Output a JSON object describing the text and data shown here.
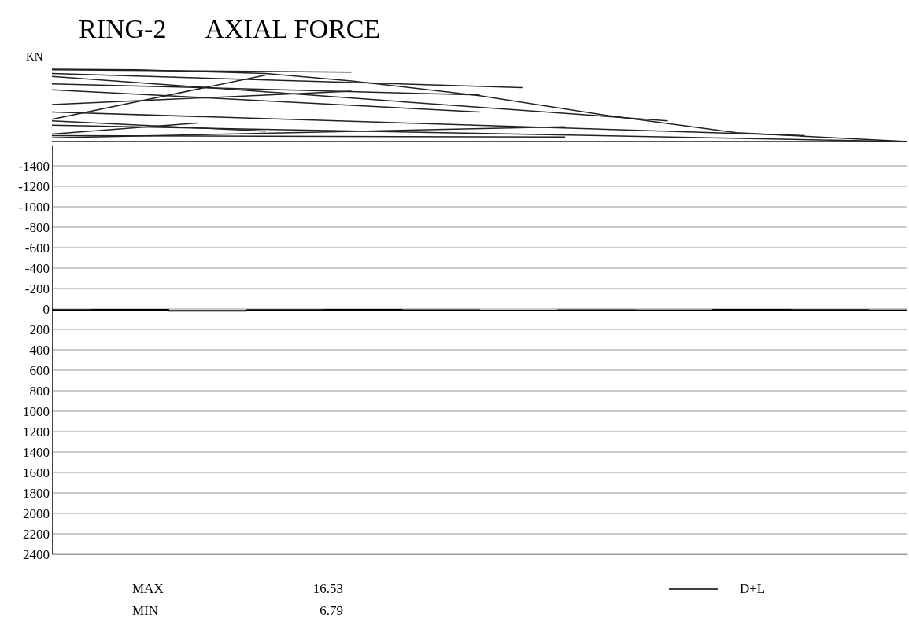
{
  "chart_data": {
    "type": "step",
    "title": "RING-2      AXIAL FORCE",
    "categories": [
      null,
      null,
      null,
      null,
      null,
      null,
      null,
      null,
      null,
      null,
      null,
      null
    ],
    "series": [
      {
        "name": "D+L",
        "color": "#000000",
        "values": [
          10,
          7,
          16.53,
          9,
          8,
          12,
          15,
          11,
          13,
          6.79,
          9,
          14
        ]
      }
    ],
    "ylim": [
      2400,
      -1600
    ],
    "yticks": [
      -1400,
      -1200,
      -1000,
      -800,
      -600,
      -400,
      -200,
      0,
      200,
      400,
      600,
      800,
      1000,
      1200,
      1400,
      1600,
      1800,
      2000,
      2200,
      2400
    ],
    "grid": "y",
    "tick_labels": "y",
    "legend": "bottom",
    "annotations": [
      "KN",
      "MAX",
      "16.53",
      "MIN",
      "6.79"
    ]
  }
}
